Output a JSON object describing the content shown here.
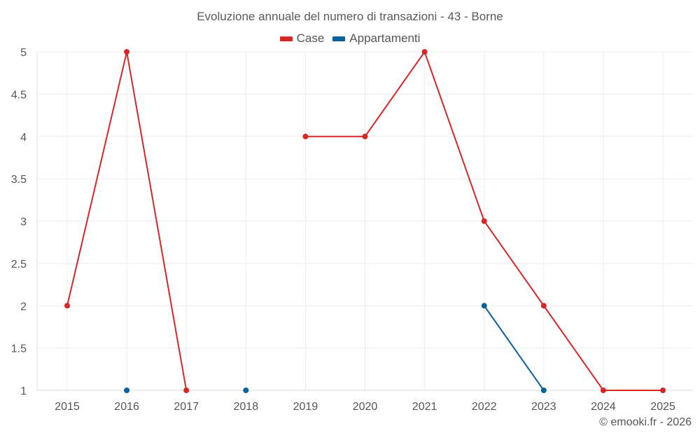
{
  "chart_data": {
    "type": "line",
    "title": "Evoluzione annuale del numero di transazioni - 43 - Borne",
    "x": [
      2015,
      2016,
      2017,
      2018,
      2019,
      2020,
      2021,
      2022,
      2023,
      2024,
      2025
    ],
    "series": [
      {
        "name": "Case",
        "color": "#d62728",
        "values": [
          2,
          5,
          1,
          null,
          4,
          4,
          5,
          3,
          2,
          1,
          1
        ]
      },
      {
        "name": "Appartamenti",
        "color": "#08629e",
        "values": [
          null,
          1,
          null,
          1,
          null,
          null,
          null,
          2,
          1,
          null,
          null
        ]
      }
    ],
    "ylim": [
      1,
      5
    ],
    "yticks": [
      "1",
      "1.5",
      "2",
      "2.5",
      "3",
      "3.5",
      "4",
      "4.5",
      "5"
    ],
    "xticks": [
      "2015",
      "2016",
      "2017",
      "2018",
      "2019",
      "2020",
      "2021",
      "2022",
      "2023",
      "2024",
      "2025"
    ],
    "grid": true,
    "legend": "top-center",
    "credit": "© emooki.fr - 2026"
  }
}
